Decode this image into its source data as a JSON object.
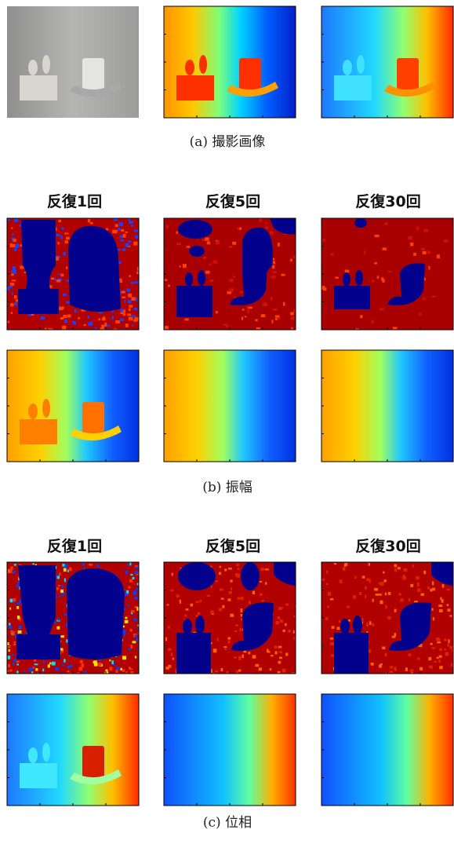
{
  "figure": {
    "a": {
      "caption": "(a) 撮影画像"
    },
    "b": {
      "column_titles": [
        "反復1回",
        "反復5回",
        "反復30回"
      ],
      "caption": "(b) 振幅"
    },
    "c": {
      "column_titles": [
        "反復1回",
        "反復5回",
        "反復30回"
      ],
      "caption": "(c) 位相"
    }
  }
}
